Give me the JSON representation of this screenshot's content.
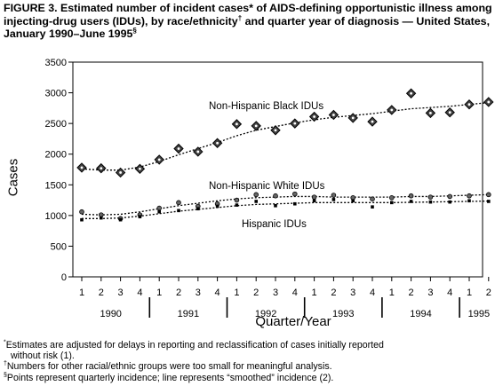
{
  "figure": {
    "title_main": "FIGURE 3. Estimated number of incident cases* of AIDS-defining opportunistic illness among injecting-drug users (IDUs), by race/ethnicity",
    "title_dagger": "†",
    "title_rest": " and quarter year of diagnosis — United States, January 1990–June 1995",
    "title_section": "§",
    "footnotes": [
      {
        "mark": "*",
        "text": "Estimates are adjusted for delays in reporting and reclassification of cases initially reported",
        "text_cont": "without risk (1)."
      },
      {
        "mark": "†",
        "text": "Numbers for other racial/ethnic groups were too small for meaningful analysis."
      },
      {
        "mark": "§",
        "text": "Points represent quarterly incidence; line represents “smoothed” incidence (2)."
      }
    ]
  },
  "chart_data": {
    "type": "scatter",
    "title": "Estimated number of incident cases* of AIDS-defining opportunistic illness among injecting-drug users (IDUs), by race/ethnicity† and quarter year of diagnosis — United States, January 1990–June 1995§",
    "xlabel": "Quarter/Year",
    "ylabel": "Cases",
    "ylim": [
      0,
      3500
    ],
    "yticks": [
      0,
      500,
      1000,
      1500,
      2000,
      2500,
      3000,
      3500
    ],
    "quarters": [
      "1",
      "2",
      "3",
      "4",
      "1",
      "2",
      "3",
      "4",
      "1",
      "2",
      "3",
      "4",
      "1",
      "2",
      "3",
      "4",
      "1",
      "2",
      "3",
      "4",
      "1",
      "2"
    ],
    "years": [
      {
        "label": "1990",
        "count": 4
      },
      {
        "label": "1991",
        "count": 4
      },
      {
        "label": "1992",
        "count": 4
      },
      {
        "label": "1993",
        "count": 4
      },
      {
        "label": "1994",
        "count": 4
      },
      {
        "label": "1995",
        "count": 2
      }
    ],
    "grid": false,
    "series": [
      {
        "name": "Non-Hispanic Black IDUs",
        "color": "#000000",
        "marker": "diamond",
        "points": [
          1780,
          1770,
          1700,
          1760,
          1910,
          2090,
          2040,
          2180,
          2490,
          2460,
          2390,
          2500,
          2610,
          2640,
          2590,
          2530,
          2720,
          2990,
          2670,
          2680,
          2810,
          2850
        ],
        "smoothed": [
          1760,
          1740,
          1740,
          1790,
          1880,
          1990,
          2090,
          2190,
          2300,
          2390,
          2450,
          2510,
          2560,
          2600,
          2630,
          2660,
          2700,
          2740,
          2760,
          2780,
          2810,
          2840
        ]
      },
      {
        "name": "Non-Hispanic White IDUs",
        "color": "#000000",
        "marker": "circle",
        "points": [
          1060,
          1010,
          950,
          1010,
          1120,
          1210,
          1150,
          1190,
          1250,
          1340,
          1320,
          1350,
          1300,
          1330,
          1290,
          1270,
          1290,
          1320,
          1300,
          1310,
          1320,
          1340
        ],
        "smoothed": [
          1020,
          1010,
          1020,
          1060,
          1110,
          1160,
          1200,
          1240,
          1270,
          1290,
          1300,
          1310,
          1310,
          1300,
          1300,
          1300,
          1300,
          1310,
          1310,
          1320,
          1330,
          1340
        ]
      },
      {
        "name": "Hispanic IDUs",
        "color": "#000000",
        "marker": "square",
        "points": [
          930,
          960,
          930,
          980,
          1060,
          1080,
          1110,
          1150,
          1170,
          1230,
          1160,
          1190,
          1240,
          1260,
          1240,
          1140,
          1210,
          1230,
          1220,
          1220,
          1240,
          1230
        ],
        "smoothed": [
          950,
          950,
          960,
          990,
          1030,
          1070,
          1100,
          1130,
          1160,
          1180,
          1190,
          1200,
          1210,
          1210,
          1210,
          1210,
          1210,
          1215,
          1220,
          1225,
          1230,
          1235
        ]
      }
    ]
  }
}
